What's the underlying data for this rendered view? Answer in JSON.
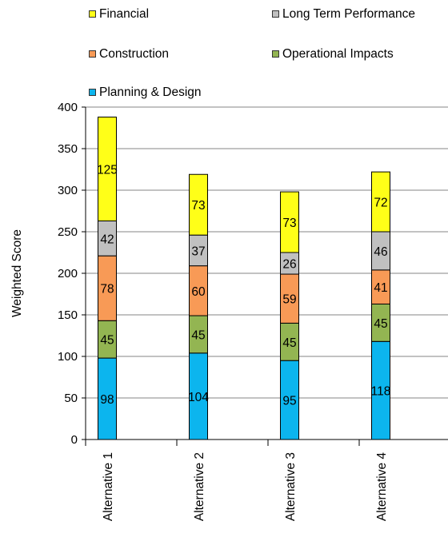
{
  "chart_data": {
    "type": "bar",
    "stacked": true,
    "categories": [
      "Alternative 1",
      "Alternative 2",
      "Alternative 3",
      "Alternative 4"
    ],
    "series": [
      {
        "name": "Planning & Design",
        "color": "#0cb5ee",
        "values": [
          98,
          104,
          95,
          118
        ]
      },
      {
        "name": "Operational Impacts",
        "color": "#93b552",
        "values": [
          45,
          45,
          45,
          45
        ]
      },
      {
        "name": "Construction",
        "color": "#f89a56",
        "values": [
          78,
          60,
          59,
          41
        ]
      },
      {
        "name": "Long Term Performance",
        "color": "#c0c0c0",
        "values": [
          42,
          37,
          26,
          46
        ]
      },
      {
        "name": "Financial",
        "color": "#ffff18",
        "values": [
          125,
          73,
          73,
          72
        ]
      }
    ],
    "ylabel": "Weighted Score",
    "xlabel": "",
    "ylim": [
      0,
      400
    ],
    "yticks": [
      "0",
      "50",
      "100",
      "150",
      "200",
      "250",
      "300",
      "350",
      "400"
    ],
    "grid": "horizontal",
    "legend_position": "top"
  }
}
